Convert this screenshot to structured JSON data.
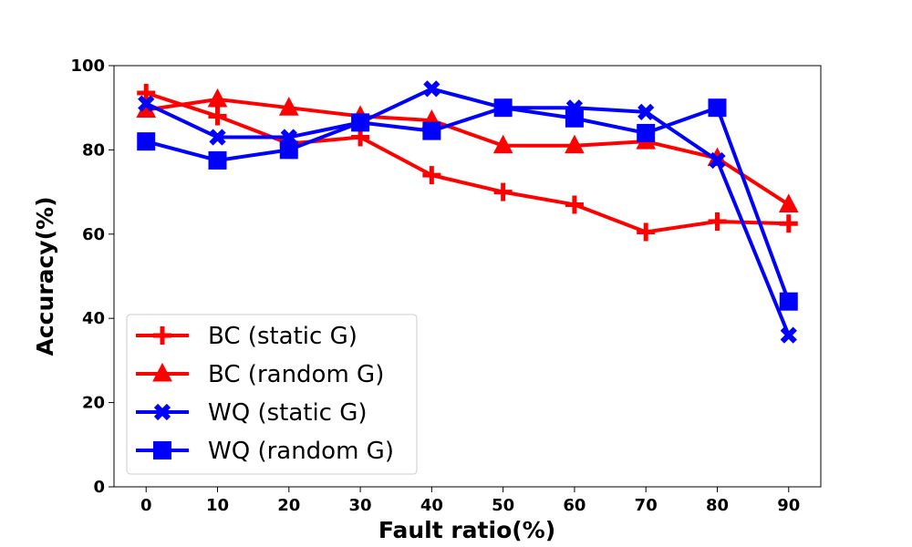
{
  "chart_data": {
    "type": "line",
    "title": "",
    "xlabel": "Fault ratio(%)",
    "ylabel": "Accuracy(%)",
    "x": [
      0,
      10,
      20,
      30,
      40,
      50,
      60,
      70,
      80,
      90
    ],
    "xticks": [
      "0",
      "10",
      "20",
      "30",
      "40",
      "50",
      "60",
      "70",
      "80",
      "90"
    ],
    "yticks": [
      "0",
      "20",
      "40",
      "60",
      "80",
      "100"
    ],
    "xlim": [
      -4.5,
      94.5
    ],
    "ylim": [
      0,
      100
    ],
    "legend_position": "bottom-left",
    "series": [
      {
        "name": "BC (static G)",
        "color": "#ff0000",
        "marker": "plus",
        "values": [
          93.5,
          88,
          81.5,
          83,
          74,
          70,
          67,
          60.5,
          63,
          62.5
        ]
      },
      {
        "name": "BC (random G)",
        "color": "#ff0000",
        "marker": "triangle",
        "values": [
          89.5,
          92,
          90,
          88,
          87,
          81,
          81,
          82,
          78,
          67
        ]
      },
      {
        "name": "WQ (static G)",
        "color": "#0000ff",
        "marker": "x",
        "values": [
          91,
          83,
          83,
          86.5,
          94.5,
          90,
          90,
          89,
          77.5,
          36
        ]
      },
      {
        "name": "WQ (random G)",
        "color": "#0000ff",
        "marker": "square",
        "values": [
          82,
          77.5,
          80,
          86.5,
          84.5,
          90,
          87.5,
          84,
          90,
          44
        ]
      }
    ]
  }
}
